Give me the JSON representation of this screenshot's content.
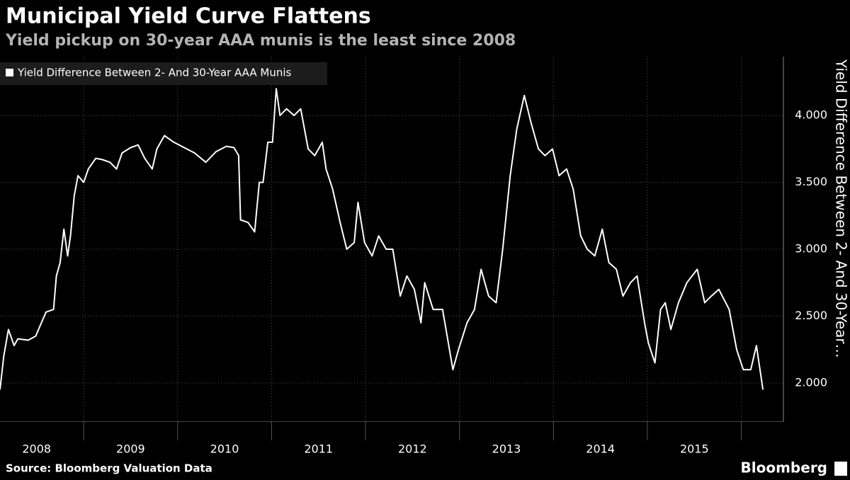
{
  "chart_data": {
    "type": "line",
    "title": "Municipal Yield Curve Flattens",
    "subtitle": "Yield pickup on 30-year AAA munis is the least since 2008",
    "y_axis_label": "Yield Difference Between 2- And 30-Year…",
    "source": "Source: Bloomberg Valuation Data",
    "brand": "Bloomberg",
    "x": [
      2008.11,
      2008.15,
      2008.2,
      2008.26,
      2008.3,
      2008.41,
      2008.49,
      2008.55,
      2008.6,
      2008.68,
      2008.71,
      2008.75,
      2008.79,
      2008.83,
      2008.86,
      2008.9,
      2008.94,
      2009.0,
      2009.05,
      2009.13,
      2009.2,
      2009.28,
      2009.35,
      2009.41,
      2009.5,
      2009.58,
      2009.65,
      2009.73,
      2009.78,
      2009.86,
      2009.96,
      2010.07,
      2010.18,
      2010.3,
      2010.41,
      2010.52,
      2010.6,
      2010.65,
      2010.67,
      2010.75,
      2010.82,
      2010.87,
      2010.91,
      2010.96,
      2011.01,
      2011.05,
      2011.09,
      2011.16,
      2011.24,
      2011.31,
      2011.39,
      2011.46,
      2011.54,
      2011.58,
      2011.65,
      2011.73,
      2011.8,
      2011.88,
      2011.92,
      2011.99,
      2012.07,
      2012.14,
      2012.22,
      2012.29,
      2012.37,
      2012.44,
      2012.52,
      2012.59,
      2012.63,
      2012.72,
      2012.82,
      2012.93,
      2012.99,
      2013.08,
      2013.16,
      2013.23,
      2013.31,
      2013.39,
      2013.46,
      2013.54,
      2013.61,
      2013.69,
      2013.76,
      2013.84,
      2013.91,
      2013.99,
      2014.06,
      2014.14,
      2014.21,
      2014.29,
      2014.36,
      2014.44,
      2014.52,
      2014.59,
      2014.67,
      2014.74,
      2014.82,
      2014.89,
      2014.97,
      2015.01,
      2015.08,
      2015.14,
      2015.19,
      2015.25,
      2015.33,
      2015.42,
      2015.53,
      2015.61,
      2015.68,
      2015.76,
      2015.87,
      2015.95,
      2016.02,
      2016.1,
      2016.16,
      2016.23
    ],
    "series": [
      {
        "name": "Yield Difference Between 2- And 30-Year AAA Munis",
        "color": "#ffffff",
        "values": [
          1.95,
          2.2,
          2.4,
          2.28,
          2.33,
          2.32,
          2.35,
          2.45,
          2.53,
          2.55,
          2.8,
          2.9,
          3.15,
          2.95,
          3.1,
          3.4,
          3.55,
          3.5,
          3.6,
          3.68,
          3.67,
          3.65,
          3.6,
          3.72,
          3.76,
          3.78,
          3.68,
          3.6,
          3.75,
          3.85,
          3.8,
          3.76,
          3.72,
          3.65,
          3.73,
          3.77,
          3.76,
          3.7,
          3.22,
          3.2,
          3.13,
          3.5,
          3.5,
          3.8,
          3.8,
          4.2,
          4.0,
          4.05,
          4.0,
          4.05,
          3.75,
          3.7,
          3.8,
          3.6,
          3.45,
          3.2,
          3.0,
          3.05,
          3.35,
          3.05,
          2.95,
          3.1,
          3.0,
          3.0,
          2.65,
          2.8,
          2.7,
          2.45,
          2.75,
          2.55,
          2.55,
          2.1,
          2.25,
          2.45,
          2.55,
          2.85,
          2.65,
          2.6,
          3.0,
          3.55,
          3.9,
          4.15,
          3.95,
          3.75,
          3.7,
          3.75,
          3.55,
          3.6,
          3.45,
          3.1,
          3.0,
          2.95,
          3.15,
          2.9,
          2.85,
          2.65,
          2.75,
          2.8,
          2.45,
          2.3,
          2.15,
          2.55,
          2.6,
          2.4,
          2.6,
          2.75,
          2.85,
          2.6,
          2.65,
          2.7,
          2.55,
          2.25,
          2.1,
          2.1,
          2.28,
          1.95
        ]
      }
    ],
    "xlim": [
      2008.11,
      2016.44
    ],
    "xticks": [
      2008,
      2009,
      2010,
      2011,
      2012,
      2013,
      2014,
      2015
    ],
    "ylim": [
      1.714,
      4.44
    ],
    "yticks": [
      {
        "value": 2,
        "label": "2.000"
      },
      {
        "value": 2.5,
        "label": "2.500"
      },
      {
        "value": 3,
        "label": "3.000"
      },
      {
        "value": 3.5,
        "label": "3.500"
      },
      {
        "value": 4,
        "label": "4.000"
      }
    ],
    "grid": true,
    "legend": "upper left"
  }
}
